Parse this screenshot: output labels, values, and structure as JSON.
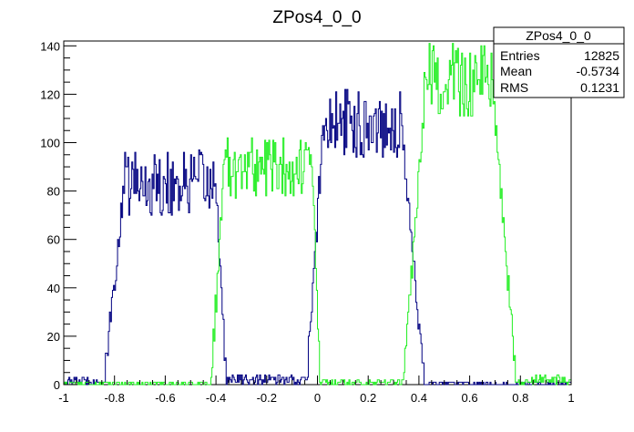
{
  "chart_data": {
    "type": "histogram",
    "title": "ZPos4_0_0",
    "xlabel": "",
    "ylabel": "",
    "xlim": [
      -1,
      1
    ],
    "ylim": [
      0,
      142
    ],
    "x_ticks": [
      "-1",
      "-0.8",
      "-0.6",
      "-0.4",
      "-0.2",
      "0",
      "0.2",
      "0.4",
      "0.6",
      "0.8",
      "1"
    ],
    "x_tick_values": [
      -1,
      -0.8,
      -0.6,
      -0.4,
      -0.2,
      0,
      0.2,
      0.4,
      0.6,
      0.8,
      1
    ],
    "y_ticks": [
      "0",
      "20",
      "40",
      "60",
      "80",
      "100",
      "120",
      "140"
    ],
    "y_tick_values": [
      0,
      20,
      40,
      60,
      80,
      100,
      120,
      140
    ],
    "colors": {
      "blue": "#000080",
      "green": "#22ee22"
    },
    "series": [
      {
        "color": "blue",
        "segments": [
          {
            "x0": -1.0,
            "x1": -0.84,
            "level": 1.5,
            "noise": 1.5
          },
          {
            "x0": -0.84,
            "x1": -0.76,
            "rise_to": 83,
            "noise": 6
          },
          {
            "x0": -0.76,
            "x1": -0.4,
            "level": 83,
            "noise": 14
          },
          {
            "x0": -0.4,
            "x1": -0.36,
            "fall_to": 3,
            "noise": 5
          },
          {
            "x0": -0.36,
            "x1": -0.04,
            "level": 2,
            "noise": 2
          },
          {
            "x0": -0.04,
            "x1": 0.02,
            "rise_to": 103,
            "noise": 8
          },
          {
            "x0": 0.02,
            "x1": 0.33,
            "level": 108,
            "noise": 14
          },
          {
            "x0": 0.33,
            "x1": 0.42,
            "fall_to": 3,
            "noise": 6
          },
          {
            "x0": 0.42,
            "x1": 1.0,
            "level": 0.5,
            "noise": 0.8
          }
        ]
      },
      {
        "color": "green",
        "segments": [
          {
            "x0": -1.0,
            "x1": -0.42,
            "level": 0.5,
            "noise": 0.8
          },
          {
            "x0": -0.42,
            "x1": -0.37,
            "rise_to": 85,
            "noise": 8
          },
          {
            "x0": -0.37,
            "x1": -0.02,
            "level": 90,
            "noise": 13
          },
          {
            "x0": -0.02,
            "x1": 0.01,
            "fall_to": 2,
            "noise": 4
          },
          {
            "x0": 0.01,
            "x1": 0.34,
            "level": 1,
            "noise": 1.5
          },
          {
            "x0": 0.34,
            "x1": 0.42,
            "rise_to": 110,
            "noise": 8
          },
          {
            "x0": 0.42,
            "x1": 0.69,
            "level": 125,
            "noise": 16
          },
          {
            "x0": 0.69,
            "x1": 0.78,
            "fall_to": 5,
            "noise": 6
          },
          {
            "x0": 0.78,
            "x1": 1.0,
            "level": 2,
            "noise": 2
          }
        ]
      }
    ]
  },
  "stats": {
    "title": "ZPos4_0_0",
    "rows": [
      {
        "label": "Entries",
        "value": "12825"
      },
      {
        "label": "Mean",
        "value": "-0.5734"
      },
      {
        "label": "RMS",
        "value": "0.1231"
      }
    ]
  }
}
